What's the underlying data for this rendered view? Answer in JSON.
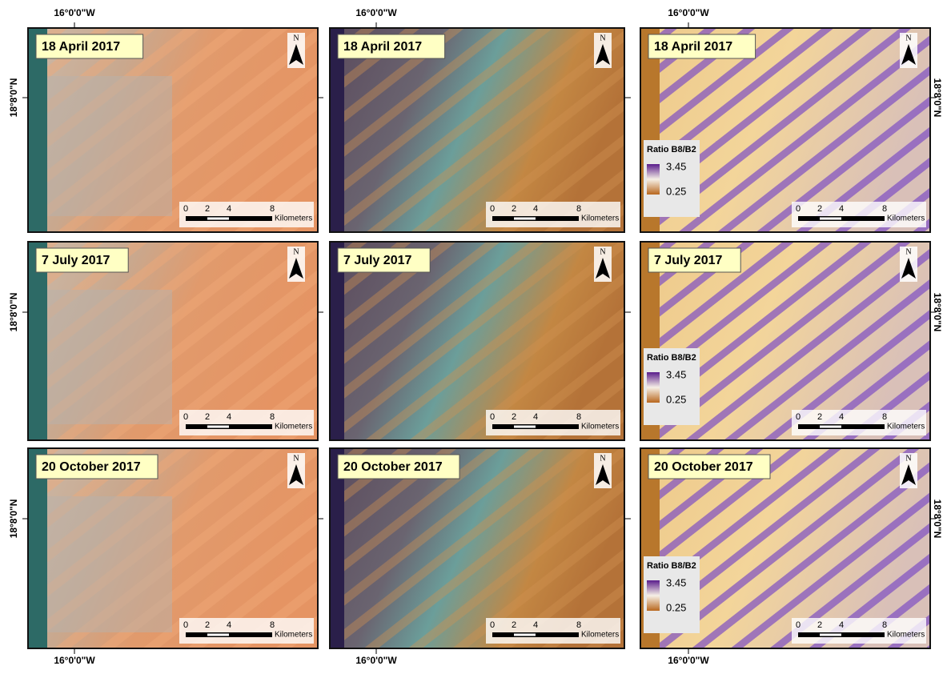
{
  "longitude_labels": {
    "top": [
      "16°0'0\"W",
      "16°0'0\"W",
      "16°0'0\"W"
    ],
    "bottom": [
      "16°0'0\"W",
      "16°0'0\"W",
      "16°0'0\"W"
    ]
  },
  "latitude_labels": {
    "left": [
      "18°8'0\"N",
      "18°8'0\"N",
      "18°8'0\"N"
    ],
    "right": [
      "18°8'0\"N",
      "18°8'0\"N",
      "18°8'0\"N"
    ]
  },
  "panels": [
    {
      "date": "18 April 2017",
      "north": "N",
      "scale": [
        "0",
        "2",
        "4",
        "8"
      ],
      "scale_unit": "Kilometers"
    },
    {
      "date": "18 April 2017",
      "north": "N",
      "scale": [
        "0",
        "2",
        "4",
        "8"
      ],
      "scale_unit": "Kilometers"
    },
    {
      "date": "18 April 2017",
      "north": "N",
      "scale": [
        "0",
        "2",
        "4",
        "8"
      ],
      "scale_unit": "Kilometers",
      "legend": {
        "title": "Ratio B8/B2",
        "max": "3.45",
        "min": "0.25"
      }
    },
    {
      "date": "7 July 2017",
      "north": "N",
      "scale": [
        "0",
        "2",
        "4",
        "8"
      ],
      "scale_unit": "Kilometers"
    },
    {
      "date": "7 July 2017",
      "north": "N",
      "scale": [
        "0",
        "2",
        "4",
        "8"
      ],
      "scale_unit": "Kilometers"
    },
    {
      "date": "7 July 2017",
      "north": "N",
      "scale": [
        "0",
        "2",
        "4",
        "8"
      ],
      "scale_unit": "Kilometers",
      "legend": {
        "title": "Ratio B8/B2",
        "max": "3.45",
        "min": "0.25"
      }
    },
    {
      "date": "20 October 2017",
      "north": "N",
      "scale": [
        "0",
        "2",
        "4",
        "8"
      ],
      "scale_unit": "Kilometers"
    },
    {
      "date": "20 October 2017",
      "north": "N",
      "scale": [
        "0",
        "2",
        "4",
        "8"
      ],
      "scale_unit": "Kilometers"
    },
    {
      "date": "20 October 2017",
      "north": "N",
      "scale": [
        "0",
        "2",
        "4",
        "8"
      ],
      "scale_unit": "Kilometers",
      "legend": {
        "title": "Ratio B8/B2",
        "max": "3.45",
        "min": "0.25"
      }
    }
  ]
}
